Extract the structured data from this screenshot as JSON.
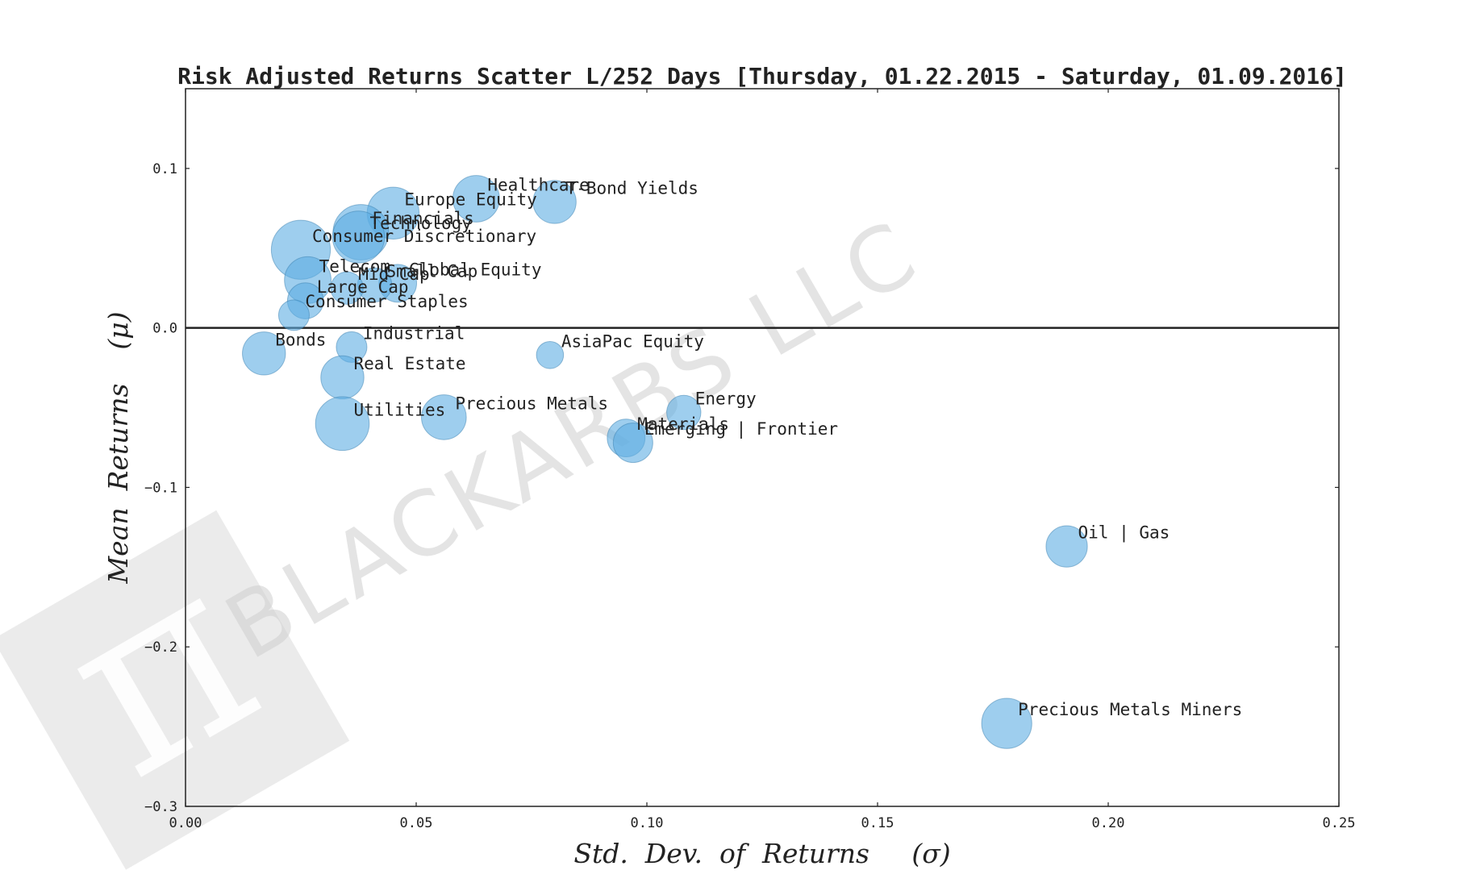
{
  "chart_data": {
    "type": "scatter",
    "title": "Risk Adjusted Returns Scatter L/252 Days [Thursday, 01.22.2015 - Saturday, 01.09.2016]",
    "xlabel": "Std.  Dev.  of  Returns     (σ)",
    "ylabel": "Mean  Returns    (μ)",
    "xlim": [
      0.0,
      0.25
    ],
    "ylim": [
      -0.3,
      0.15
    ],
    "xticks": [
      0.0,
      0.05,
      0.1,
      0.15,
      0.2,
      0.25
    ],
    "xtick_labels": [
      "0.00",
      "0.05",
      "0.10",
      "0.15",
      "0.20",
      "0.25"
    ],
    "yticks": [
      0.1,
      0.0,
      -0.1,
      -0.2,
      -0.3
    ],
    "ytick_labels": [
      "0.1",
      "0.0",
      "−0.1",
      "−0.2",
      "−0.3"
    ],
    "zero_line": true,
    "grid": false,
    "marker_color": "#5dade2",
    "marker_edge_color": "#3a7fb0",
    "axis_color": "#222222",
    "points": [
      {
        "label": "Healthcare",
        "x": 0.063,
        "y": 0.081,
        "size": 0.95
      },
      {
        "label": "T-Bond Yields",
        "x": 0.08,
        "y": 0.079,
        "size": 0.85
      },
      {
        "label": "Europe Equity",
        "x": 0.045,
        "y": 0.072,
        "size": 1.1
      },
      {
        "label": "Financials",
        "x": 0.038,
        "y": 0.06,
        "size": 1.2
      },
      {
        "label": "Technology",
        "x": 0.0375,
        "y": 0.057,
        "size": 1.1
      },
      {
        "label": "Consumer Discretionary",
        "x": 0.025,
        "y": 0.049,
        "size": 1.3
      },
      {
        "label": "Telecom",
        "x": 0.0265,
        "y": 0.03,
        "size": 0.95
      },
      {
        "label": "Global Equity",
        "x": 0.046,
        "y": 0.028,
        "size": 0.7
      },
      {
        "label": "Small Cap",
        "x": 0.041,
        "y": 0.027,
        "size": 0.6
      },
      {
        "label": "Mid Cap",
        "x": 0.035,
        "y": 0.025,
        "size": 0.55
      },
      {
        "label": "Large Cap",
        "x": 0.026,
        "y": 0.017,
        "size": 0.65
      },
      {
        "label": "Consumer Staples",
        "x": 0.0235,
        "y": 0.008,
        "size": 0.5
      },
      {
        "label": "Bonds",
        "x": 0.017,
        "y": -0.016,
        "size": 0.85
      },
      {
        "label": "Industrial",
        "x": 0.036,
        "y": -0.012,
        "size": 0.5
      },
      {
        "label": "Real Estate",
        "x": 0.034,
        "y": -0.031,
        "size": 0.85
      },
      {
        "label": "AsiaPac Equity",
        "x": 0.079,
        "y": -0.017,
        "size": 0.4
      },
      {
        "label": "Utilities",
        "x": 0.034,
        "y": -0.06,
        "size": 1.15
      },
      {
        "label": "Precious Metals",
        "x": 0.056,
        "y": -0.056,
        "size": 0.9
      },
      {
        "label": "Energy",
        "x": 0.108,
        "y": -0.053,
        "size": 0.6
      },
      {
        "label": "Materials",
        "x": 0.0955,
        "y": -0.069,
        "size": 0.7
      },
      {
        "label": "Emerging | Frontier",
        "x": 0.097,
        "y": -0.072,
        "size": 0.75
      },
      {
        "label": "Oil | Gas",
        "x": 0.191,
        "y": -0.137,
        "size": 0.8
      },
      {
        "label": "Precious Metals Miners",
        "x": 0.178,
        "y": -0.248,
        "size": 1.05
      }
    ]
  },
  "watermark": {
    "text": "BLACKARBS LLC",
    "logo_glyph": "π"
  }
}
